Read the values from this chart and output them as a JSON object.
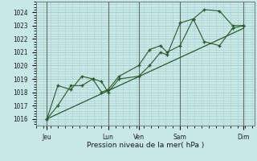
{
  "bg_color": "#c8e8e8",
  "grid_color": "#a8d0d0",
  "line_color": "#2a5a2a",
  "marker_color": "#2a5a2a",
  "xlabel": "Pression niveau de la mer( hPa )",
  "ylim": [
    1015.5,
    1024.8
  ],
  "yticks": [
    1016,
    1017,
    1018,
    1019,
    1020,
    1021,
    1022,
    1023,
    1024
  ],
  "xtick_labels": [
    "Jeu",
    "Lun",
    "Ven",
    "Sam",
    "Dim"
  ],
  "xtick_positions": [
    0.05,
    0.33,
    0.47,
    0.66,
    0.95
  ],
  "figsize": [
    3.2,
    2.0
  ],
  "dpi": 100,
  "series1_x": [
    0.05,
    0.1,
    0.16,
    0.21,
    0.26,
    0.3,
    0.33,
    0.38,
    0.47,
    0.52,
    0.57,
    0.6,
    0.66,
    0.72,
    0.77,
    0.84,
    0.9,
    0.95
  ],
  "series1_y": [
    1016.0,
    1017.0,
    1018.5,
    1018.5,
    1019.0,
    1018.8,
    1018.0,
    1019.0,
    1019.2,
    1020.0,
    1021.0,
    1020.8,
    1023.2,
    1023.5,
    1024.2,
    1024.1,
    1023.0,
    1023.0
  ],
  "series2_x": [
    0.05,
    0.1,
    0.16,
    0.21,
    0.26,
    0.3,
    0.33,
    0.38,
    0.47,
    0.52,
    0.57,
    0.6,
    0.66,
    0.72,
    0.77,
    0.84,
    0.9,
    0.95
  ],
  "series2_y": [
    1016.0,
    1018.5,
    1018.2,
    1019.2,
    1019.0,
    1018.0,
    1018.2,
    1019.2,
    1020.0,
    1021.2,
    1021.5,
    1021.0,
    1021.5,
    1023.5,
    1021.8,
    1021.5,
    1022.8,
    1023.0
  ],
  "trend_x": [
    0.05,
    0.95
  ],
  "trend_y": [
    1016.0,
    1022.8
  ],
  "vline_positions": [
    0.05,
    0.33,
    0.47,
    0.66,
    0.95
  ]
}
